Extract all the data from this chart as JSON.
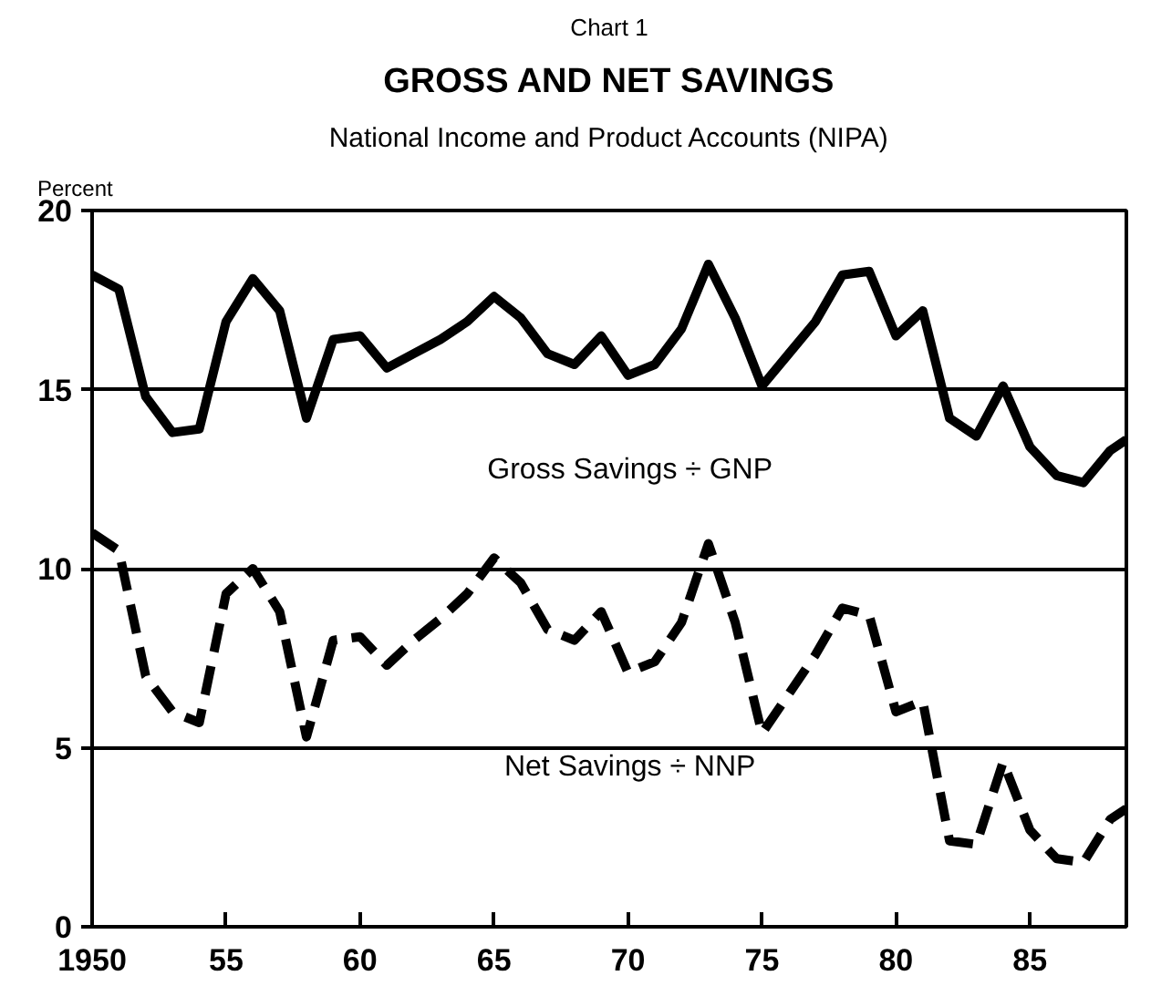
{
  "chart_data": {
    "type": "line",
    "title": "GROSS AND NET SAVINGS",
    "subtitle": "National Income and Product Accounts (NIPA)",
    "annotations": [
      "Chart 1"
    ],
    "ylabel": "Percent",
    "x": [
      1950,
      1951,
      1952,
      1953,
      1954,
      1955,
      1956,
      1957,
      1958,
      1959,
      1960,
      1961,
      1962,
      1963,
      1964,
      1965,
      1966,
      1967,
      1968,
      1969,
      1970,
      1971,
      1972,
      1973,
      1974,
      1975,
      1976,
      1977,
      1978,
      1979,
      1980,
      1981,
      1982,
      1983,
      1984,
      1985,
      1986,
      1987,
      1988,
      1988.6
    ],
    "series": [
      {
        "name": "Gross Savings ÷ GNP",
        "color": "#000000",
        "line_style": "solid",
        "values": [
          18.2,
          17.8,
          14.8,
          13.8,
          13.9,
          16.9,
          18.1,
          17.2,
          14.2,
          16.4,
          16.5,
          15.6,
          16.0,
          16.4,
          16.9,
          17.6,
          17.0,
          16.0,
          15.7,
          16.5,
          15.4,
          15.7,
          16.7,
          18.5,
          17.0,
          15.1,
          16.0,
          16.9,
          18.2,
          18.3,
          16.5,
          17.2,
          14.2,
          13.7,
          15.1,
          13.4,
          12.6,
          12.4,
          13.3,
          13.6
        ]
      },
      {
        "name": "Net Savings ÷ NNP",
        "color": "#000000",
        "line_style": "dashed",
        "values": [
          11.0,
          10.5,
          7.0,
          6.0,
          5.7,
          9.3,
          10.0,
          8.8,
          5.3,
          8.0,
          8.1,
          7.3,
          8.0,
          8.6,
          9.3,
          10.3,
          9.6,
          8.3,
          8.0,
          8.8,
          7.1,
          7.4,
          8.5,
          10.7,
          8.5,
          5.4,
          6.5,
          7.6,
          8.9,
          8.7,
          6.0,
          6.3,
          2.4,
          2.3,
          4.6,
          2.7,
          1.9,
          1.8,
          3.0,
          3.3
        ]
      }
    ],
    "xlim": [
      1950,
      1988.6
    ],
    "ylim": [
      0,
      20
    ],
    "xticks": [
      1950,
      {
        "value": 1955,
        "label": "55"
      },
      {
        "value": 1960,
        "label": "60"
      },
      {
        "value": 1965,
        "label": "65"
      },
      {
        "value": 1970,
        "label": "70"
      },
      {
        "value": 1975,
        "label": "75"
      },
      {
        "value": 1980,
        "label": "80"
      },
      {
        "value": 1985,
        "label": "85"
      }
    ],
    "yticks": [
      0,
      5,
      10,
      15,
      20
    ],
    "grid": "y",
    "marker": "none"
  }
}
